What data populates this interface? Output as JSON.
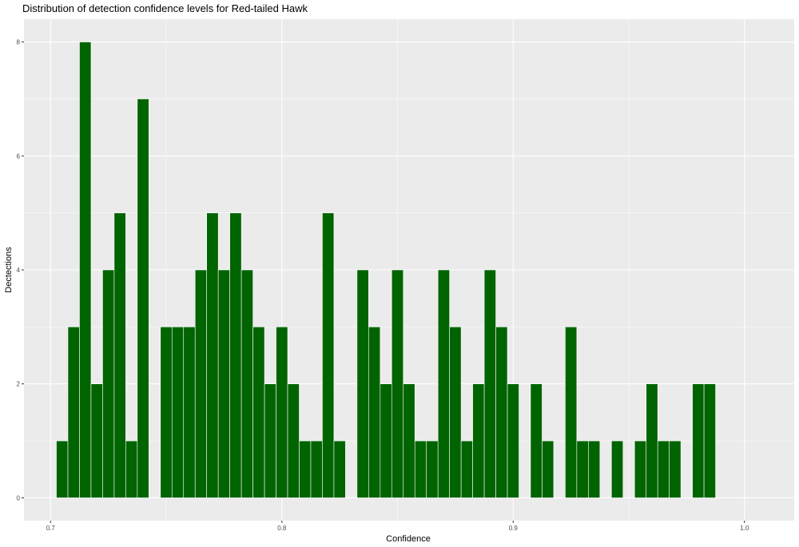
{
  "chart_data": {
    "type": "bar",
    "title": "Distribution of detection confidence levels for Red-tailed Hawk",
    "xlabel": "Confidence",
    "ylabel": "Dectections",
    "xlim": [
      0.6885,
      1.0215
    ],
    "ylim": [
      -0.4,
      8.4
    ],
    "x_ticks": [
      0.7,
      0.8,
      0.9,
      1.0
    ],
    "x_tick_labels": [
      "0.7",
      "0.8",
      "0.9",
      "1.0"
    ],
    "y_ticks": [
      0,
      2,
      4,
      6,
      8
    ],
    "y_tick_labels": [
      "0",
      "2",
      "4",
      "6",
      "8"
    ],
    "bin_width": 0.005,
    "bin_centers": [
      0.705,
      0.71,
      0.715,
      0.72,
      0.725,
      0.73,
      0.735,
      0.74,
      0.745,
      0.75,
      0.755,
      0.76,
      0.765,
      0.77,
      0.775,
      0.78,
      0.785,
      0.79,
      0.795,
      0.8,
      0.805,
      0.81,
      0.815,
      0.82,
      0.825,
      0.83,
      0.835,
      0.84,
      0.845,
      0.85,
      0.855,
      0.86,
      0.865,
      0.87,
      0.875,
      0.88,
      0.885,
      0.89,
      0.895,
      0.9,
      0.905,
      0.91,
      0.915,
      0.92,
      0.925,
      0.93,
      0.935,
      0.94,
      0.945,
      0.95,
      0.955,
      0.96,
      0.965,
      0.97,
      0.975,
      0.98,
      0.985
    ],
    "values": [
      1,
      3,
      8,
      2,
      4,
      5,
      1,
      7,
      0,
      3,
      3,
      3,
      4,
      5,
      4,
      5,
      4,
      3,
      2,
      3,
      2,
      1,
      1,
      5,
      1,
      0,
      4,
      3,
      2,
      4,
      2,
      1,
      1,
      4,
      3,
      1,
      2,
      4,
      3,
      2,
      0,
      2,
      1,
      0,
      3,
      1,
      1,
      0,
      1,
      0,
      1,
      2,
      1,
      1,
      0,
      2,
      2
    ],
    "bar_color": "#006400",
    "bar_outline": "#ffffff",
    "panel_background": "#ebebeb",
    "grid_color": "#ffffff",
    "grid": true,
    "legend": "none"
  }
}
